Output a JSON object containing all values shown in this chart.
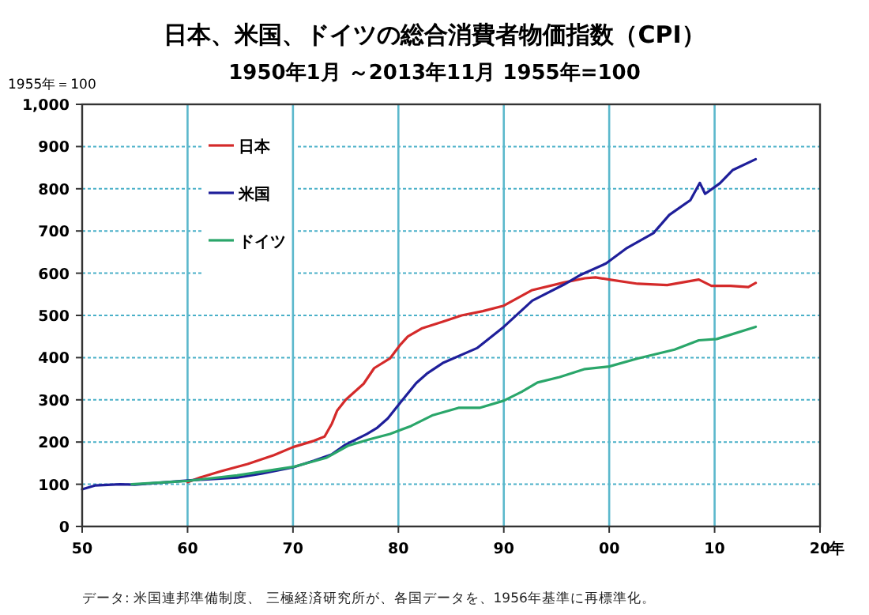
{
  "chart_data": {
    "type": "line",
    "title": "日本、米国、ドイツの総合消費者物価指数（CPI）",
    "subtitle": "1950年1月 ～2013年11月   1955年=100",
    "ylabel": "1955年＝100",
    "annotations": [
      "データ:  米国連邦準備制度、 三極経済研究所が、各国データを、1956年基準に再標準化。"
    ],
    "xlim": [
      1950,
      2020
    ],
    "xticks": [
      {
        "value": 1950,
        "label": "50"
      },
      {
        "value": 1960,
        "label": "60"
      },
      {
        "value": 1970,
        "label": "70"
      },
      {
        "value": 1980,
        "label": "80"
      },
      {
        "value": 1990,
        "label": "90"
      },
      {
        "value": 2000,
        "label": "00"
      },
      {
        "value": 2010,
        "label": "10"
      },
      {
        "value": 2020,
        "label": "20"
      }
    ],
    "xlabel": "年",
    "ylim": [
      0,
      1000
    ],
    "yticks": [
      0,
      100,
      200,
      300,
      400,
      500,
      600,
      700,
      800,
      900,
      {
        "value": 1000,
        "label": "1,000"
      }
    ],
    "grid": true,
    "legend": "top left",
    "series": [
      {
        "name": "日本",
        "color": "#d42a2a",
        "x": [
          1960,
          1961.2,
          1963.2,
          1965.7,
          1968.2,
          1970,
          1972,
          1973,
          1973.7,
          1974.2,
          1975,
          1976.7,
          1977.7,
          1979.2,
          1980.2,
          1980.9,
          1982.2,
          1984.2,
          1986,
          1988,
          1990,
          1992.7,
          1995.7,
          1997.7,
          1998.7,
          2000,
          2002.7,
          2005.5,
          2008.5,
          2009.7,
          2011.5,
          2013.2,
          2013.9
        ],
        "values": [
          105,
          116,
          131,
          148,
          169,
          188,
          203,
          213,
          244,
          275,
          300,
          338,
          375,
          398,
          431,
          450,
          469,
          485,
          500,
          510,
          523,
          560,
          578,
          588,
          590,
          585,
          575,
          572,
          585,
          570,
          570,
          567,
          577
        ]
      },
      {
        "name": "米国",
        "color": "#1f1f9a",
        "x": [
          1950,
          1951.2,
          1953.6,
          1955,
          1960,
          1964.7,
          1967,
          1970,
          1972,
          1973.7,
          1975,
          1977,
          1978,
          1979,
          1980.2,
          1981.7,
          1982.7,
          1984.2,
          1987.5,
          1990,
          1992.7,
          1995.7,
          1997.2,
          1999.7,
          2001.7,
          2004.2,
          2005.7,
          2007.7,
          2008.6,
          2009.1,
          2010.5,
          2011.7,
          2013.9
        ],
        "values": [
          88,
          97,
          100,
          99,
          109,
          116,
          125,
          140,
          156,
          171,
          194,
          219,
          234,
          256,
          294,
          340,
          362,
          387,
          423,
          473,
          535,
          573,
          595,
          623,
          660,
          695,
          738,
          773,
          814,
          788,
          813,
          844,
          870
        ]
      },
      {
        "name": "ドイツ",
        "color": "#2aa66a",
        "x": [
          1954.7,
          1960,
          1964.7,
          1970,
          1973.2,
          1975.2,
          1977.2,
          1979.2,
          1981.2,
          1983.2,
          1985.7,
          1987.7,
          1990,
          1991.7,
          1993.2,
          1995.3,
          1997.7,
          2000,
          2002.7,
          2006.2,
          2008.5,
          2010.2,
          2013.9
        ],
        "values": [
          100,
          108,
          121,
          141,
          163,
          191,
          206,
          219,
          238,
          263,
          281,
          281,
          298,
          319,
          341,
          354,
          373,
          379,
          398,
          419,
          441,
          444,
          473
        ]
      }
    ]
  }
}
